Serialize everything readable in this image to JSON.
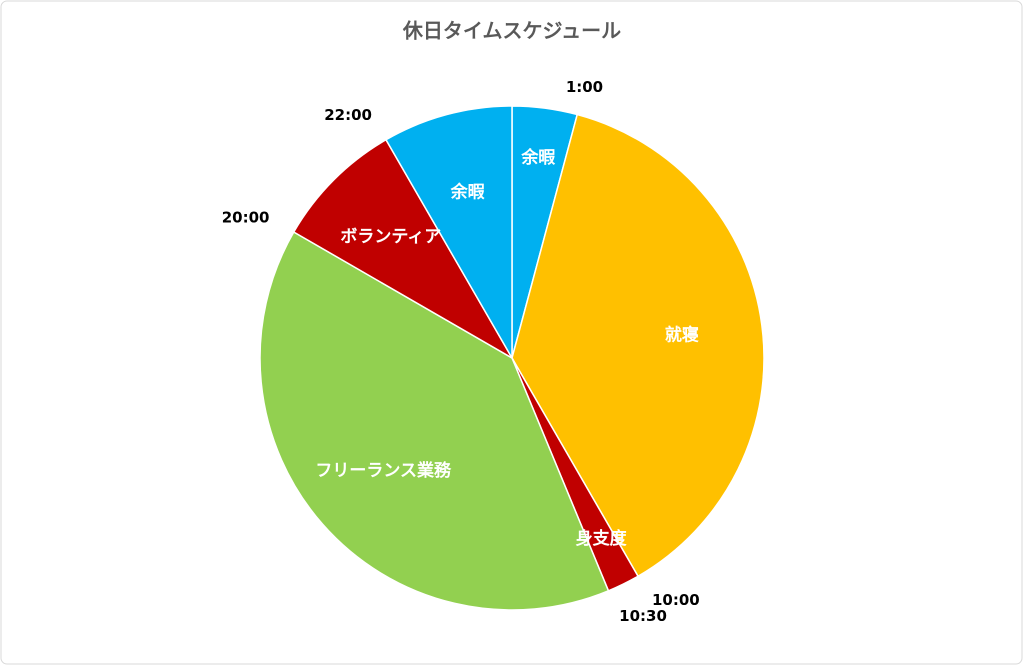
{
  "chart_data": {
    "type": "pie",
    "title": "休日タイムスケジュール",
    "categories": [
      "余暇",
      "就寝",
      "身支度",
      "フリーランス業務",
      "ボランティア",
      "余暇"
    ],
    "values": [
      1,
      9,
      0.5,
      9.5,
      2,
      2
    ],
    "colors": [
      "#00b0f0",
      "#ffc000",
      "#c00000",
      "#92d050",
      "#c00000",
      "#00b0f0"
    ],
    "annotations": [
      "1:00",
      "10:00",
      "10:30",
      "20:00",
      "22:00"
    ]
  }
}
